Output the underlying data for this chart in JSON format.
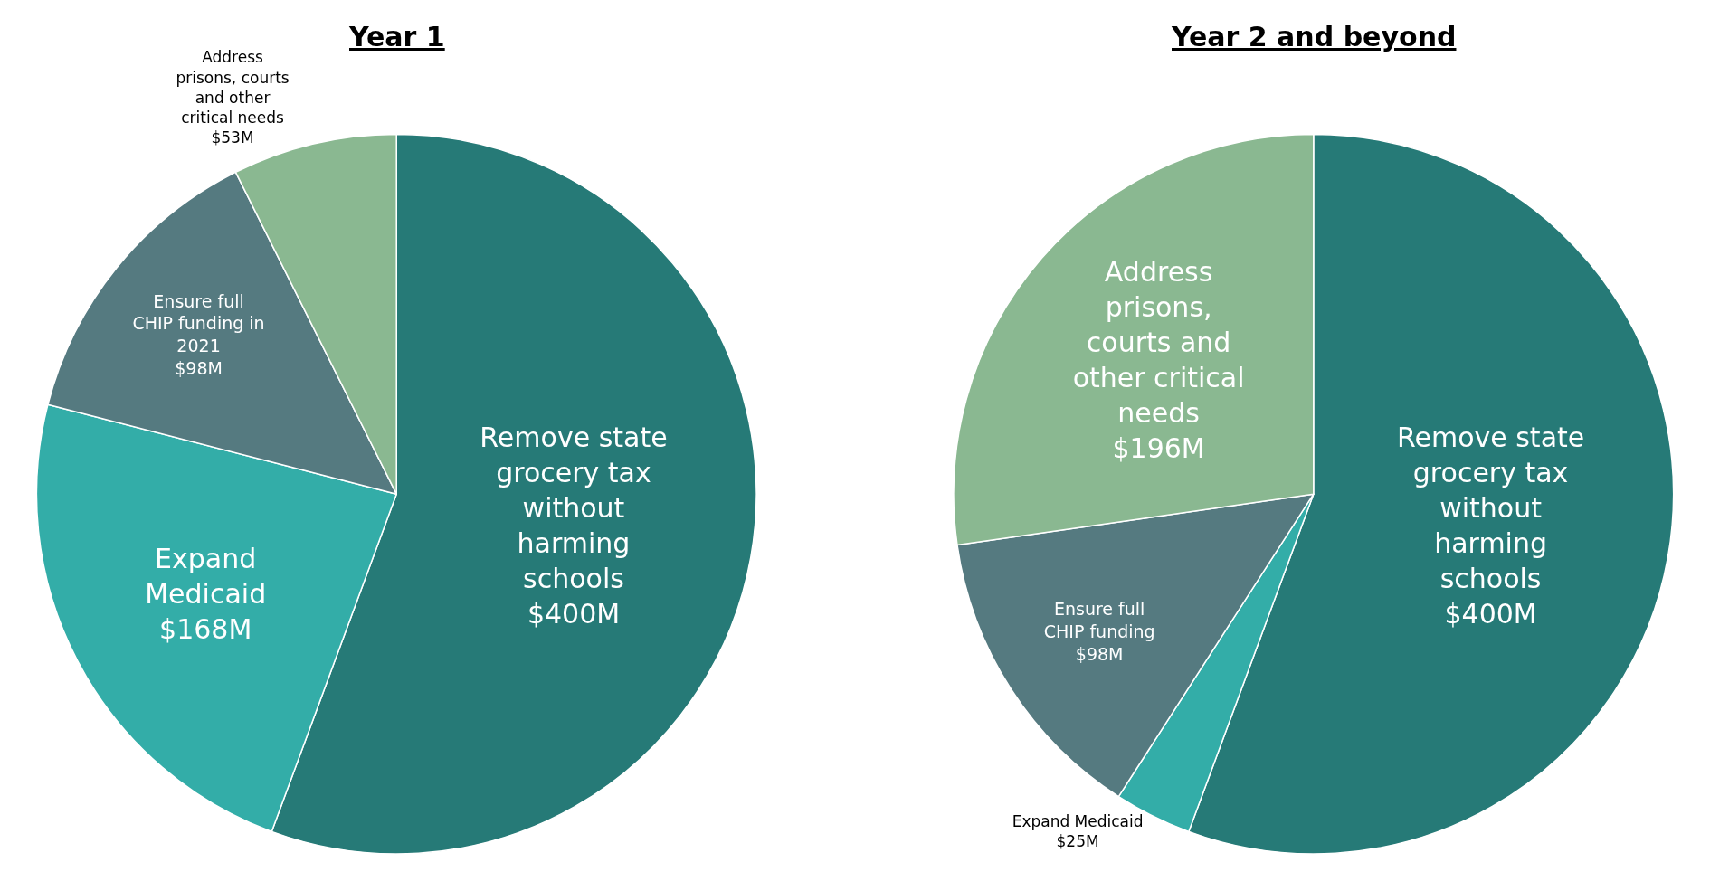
{
  "chart_data": [
    {
      "type": "pie",
      "title": "Year 1",
      "categories": [
        "Remove state grocery tax without harming schools",
        "Expand Medicaid",
        "Ensure full CHIP funding in 2021",
        "Address prisons, courts and other critical needs"
      ],
      "values": [
        400,
        168,
        98,
        53
      ],
      "value_labels": [
        "$400M",
        "$168M",
        "$98M",
        "$53M"
      ],
      "colors": [
        "#267a77",
        "#33ada8",
        "#557a80",
        "#8ab891"
      ]
    },
    {
      "type": "pie",
      "title": "Year 2 and beyond",
      "categories": [
        "Remove state grocery tax without harming schools",
        "Expand Medicaid",
        "Ensure full CHIP funding",
        "Address prisons, courts and other critical needs"
      ],
      "values": [
        400,
        25,
        98,
        196
      ],
      "value_labels": [
        "$400M",
        "$25M",
        "$98M",
        "$196M"
      ],
      "colors": [
        "#267a77",
        "#33ada8",
        "#557a80",
        "#8ab891"
      ]
    }
  ]
}
